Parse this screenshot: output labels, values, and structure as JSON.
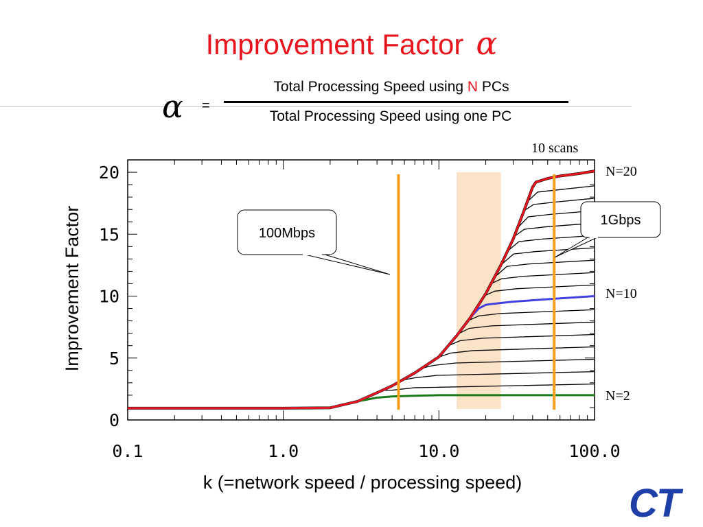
{
  "title": {
    "text": "Improvement Factor",
    "symbol": "α"
  },
  "formula": {
    "symbol": "α",
    "equals": "=",
    "numerator_prefix": "Total Processing Speed using ",
    "numerator_highlight": "N",
    "numerator_suffix": " PCs",
    "denominator": "Total Processing Speed using one PC"
  },
  "logo_text": "CT",
  "colors": {
    "title": "#e8141e",
    "n20_line": "#e8141e",
    "n10_line": "#4040e0",
    "n2_line": "#1a7a1a",
    "marker_lines": "#f5a01e",
    "shaded_band": "#fbe3c8",
    "logo": "#1e3ea8"
  },
  "chart_data": {
    "type": "line",
    "title": "",
    "xlabel": "k (=network speed / processing speed)",
    "ylabel": "Improvement Factor",
    "xscale": "log",
    "xlim": [
      0.1,
      100
    ],
    "ylim": [
      0,
      21
    ],
    "x_ticks": [
      "0.1",
      "1.0",
      "10.0",
      "100.0"
    ],
    "y_ticks": [
      "0",
      "5",
      "10",
      "15",
      "20"
    ],
    "annotation_top": "10 scans",
    "callouts": [
      {
        "text": "100Mbps",
        "k": 5.5
      },
      {
        "text": "1Gbps",
        "k": 55
      }
    ],
    "shaded_range": [
      13,
      25
    ],
    "curve_labels": [
      "N=20",
      "N=10",
      "N=2"
    ],
    "series": [
      {
        "name": "N=20",
        "highlight": "red",
        "x": [
          0.1,
          0.5,
          1.0,
          2.0,
          3.0,
          4.0,
          5.0,
          7.0,
          10,
          13,
          16,
          20,
          25,
          30,
          35,
          40,
          42,
          50,
          60,
          80,
          100
        ],
        "y": [
          0.95,
          0.95,
          0.95,
          0.98,
          1.5,
          2.2,
          2.75,
          3.8,
          5.1,
          6.8,
          8.3,
          10.2,
          12.5,
          14.6,
          16.8,
          18.8,
          19.2,
          19.5,
          19.7,
          19.9,
          20.1
        ]
      },
      {
        "name": "N=10",
        "highlight": "blue",
        "x": [
          0.1,
          1.0,
          2.0,
          3.0,
          4.0,
          5.0,
          7.0,
          10,
          13,
          16,
          18,
          20,
          25,
          30,
          50,
          100
        ],
        "y": [
          0.95,
          0.95,
          0.98,
          1.5,
          2.2,
          2.75,
          3.8,
          5.1,
          6.8,
          8.3,
          9.0,
          9.3,
          9.45,
          9.55,
          9.75,
          10.0
        ]
      },
      {
        "name": "N=2",
        "highlight": "green",
        "x": [
          0.1,
          1.0,
          2.0,
          3.0,
          4.0,
          5.0,
          7.0,
          10,
          20,
          50,
          100
        ],
        "y": [
          0.95,
          0.95,
          0.98,
          1.5,
          1.8,
          1.9,
          1.95,
          2.0,
          2.0,
          2.0,
          2.0
        ]
      }
    ]
  }
}
